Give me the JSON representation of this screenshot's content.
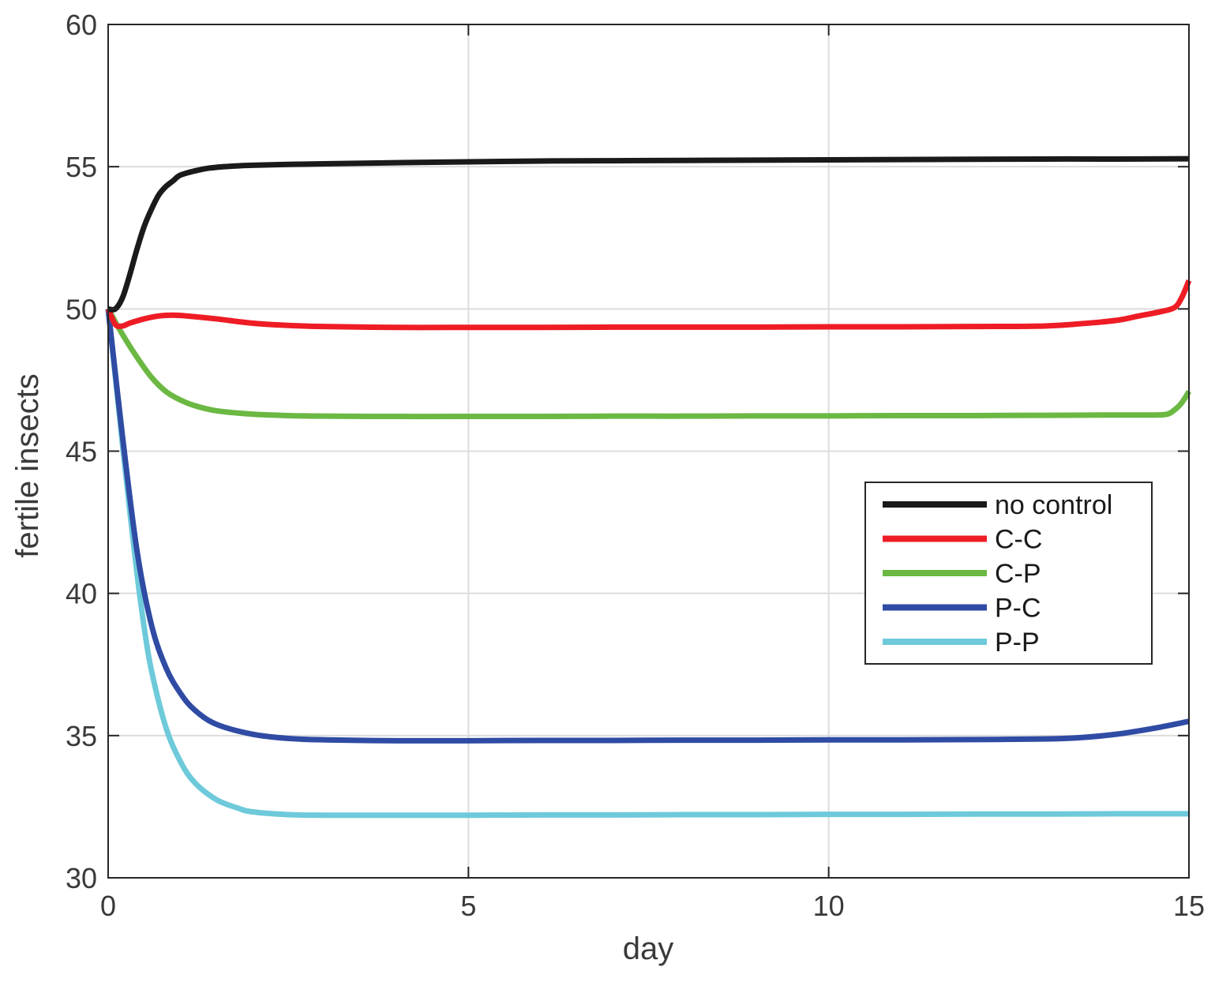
{
  "chart_data": {
    "type": "line",
    "title": "",
    "xlabel": "day",
    "ylabel": "fertile insects",
    "xlim": [
      0,
      15
    ],
    "ylim": [
      30,
      60
    ],
    "xticks": [
      0,
      5,
      10,
      15
    ],
    "yticks": [
      30,
      35,
      40,
      45,
      50,
      55,
      60
    ],
    "grid": true,
    "legend_position": "right",
    "series": [
      {
        "name": "no control",
        "color": "#1a1a1a",
        "x": [
          0,
          0.1,
          0.2,
          0.3,
          0.4,
          0.5,
          0.6,
          0.7,
          0.8,
          0.9,
          1.0,
          1.2,
          1.4,
          1.6,
          1.8,
          2.0,
          2.5,
          3,
          4,
          5,
          6,
          7,
          8,
          9,
          10,
          11,
          12,
          13,
          14,
          15
        ],
        "y": [
          50.0,
          50.0,
          50.4,
          51.2,
          52.1,
          52.9,
          53.5,
          54.0,
          54.3,
          54.5,
          54.7,
          54.85,
          54.95,
          55.0,
          55.03,
          55.05,
          55.08,
          55.1,
          55.14,
          55.17,
          55.2,
          55.21,
          55.22,
          55.23,
          55.24,
          55.25,
          55.26,
          55.27,
          55.27,
          55.28
        ]
      },
      {
        "name": "C-C",
        "color": "#ee1c25",
        "x": [
          0,
          0.1,
          0.2,
          0.3,
          0.5,
          0.7,
          0.9,
          1.1,
          1.5,
          2,
          2.5,
          3,
          4,
          5,
          6,
          7,
          8,
          9,
          10,
          11,
          12,
          13,
          13.5,
          14,
          14.3,
          14.6,
          14.8,
          14.9,
          15
        ],
        "y": [
          50.0,
          49.45,
          49.4,
          49.5,
          49.65,
          49.75,
          49.78,
          49.75,
          49.65,
          49.5,
          49.42,
          49.38,
          49.35,
          49.35,
          49.35,
          49.36,
          49.36,
          49.36,
          49.37,
          49.37,
          49.38,
          49.4,
          49.48,
          49.6,
          49.75,
          49.9,
          50.05,
          50.4,
          51.0
        ]
      },
      {
        "name": "C-P",
        "color": "#6bb843",
        "x": [
          0,
          0.2,
          0.4,
          0.6,
          0.8,
          1.0,
          1.2,
          1.5,
          2,
          2.5,
          3,
          4,
          5,
          6,
          7,
          8,
          9,
          10,
          11,
          12,
          13,
          14,
          14.5,
          14.7,
          14.8,
          14.9,
          15
        ],
        "y": [
          50.0,
          49.1,
          48.3,
          47.6,
          47.1,
          46.8,
          46.6,
          46.42,
          46.3,
          46.25,
          46.23,
          46.22,
          46.22,
          46.22,
          46.23,
          46.23,
          46.24,
          46.24,
          46.25,
          46.25,
          46.26,
          46.27,
          46.27,
          46.3,
          46.45,
          46.7,
          47.1
        ]
      },
      {
        "name": "P-C",
        "color": "#2f4ba3",
        "x": [
          0,
          0.2,
          0.4,
          0.6,
          0.8,
          1.0,
          1.2,
          1.5,
          2,
          2.5,
          3,
          4,
          5,
          6,
          7,
          8,
          9,
          10,
          11,
          12,
          13,
          13.5,
          14,
          14.5,
          15
        ],
        "y": [
          50.0,
          45.5,
          41.5,
          38.9,
          37.4,
          36.5,
          35.9,
          35.4,
          35.05,
          34.9,
          34.85,
          34.82,
          34.82,
          34.83,
          34.83,
          34.84,
          34.84,
          34.85,
          34.85,
          34.86,
          34.88,
          34.93,
          35.05,
          35.25,
          35.5
        ]
      },
      {
        "name": "P-P",
        "color": "#6ecada",
        "x": [
          0,
          0.1,
          0.2,
          0.3,
          0.4,
          0.5,
          0.6,
          0.8,
          1.0,
          1.2,
          1.5,
          1.8,
          2.0,
          2.5,
          3,
          4,
          5,
          6,
          7,
          8,
          9,
          10,
          11,
          12,
          13,
          14,
          15
        ],
        "y": [
          50.0,
          47.6,
          45.2,
          42.9,
          40.7,
          38.8,
          37.3,
          35.3,
          34.1,
          33.35,
          32.75,
          32.45,
          32.32,
          32.22,
          32.2,
          32.2,
          32.2,
          32.21,
          32.21,
          32.22,
          32.22,
          32.23,
          32.23,
          32.24,
          32.24,
          32.25,
          32.25
        ]
      }
    ]
  }
}
